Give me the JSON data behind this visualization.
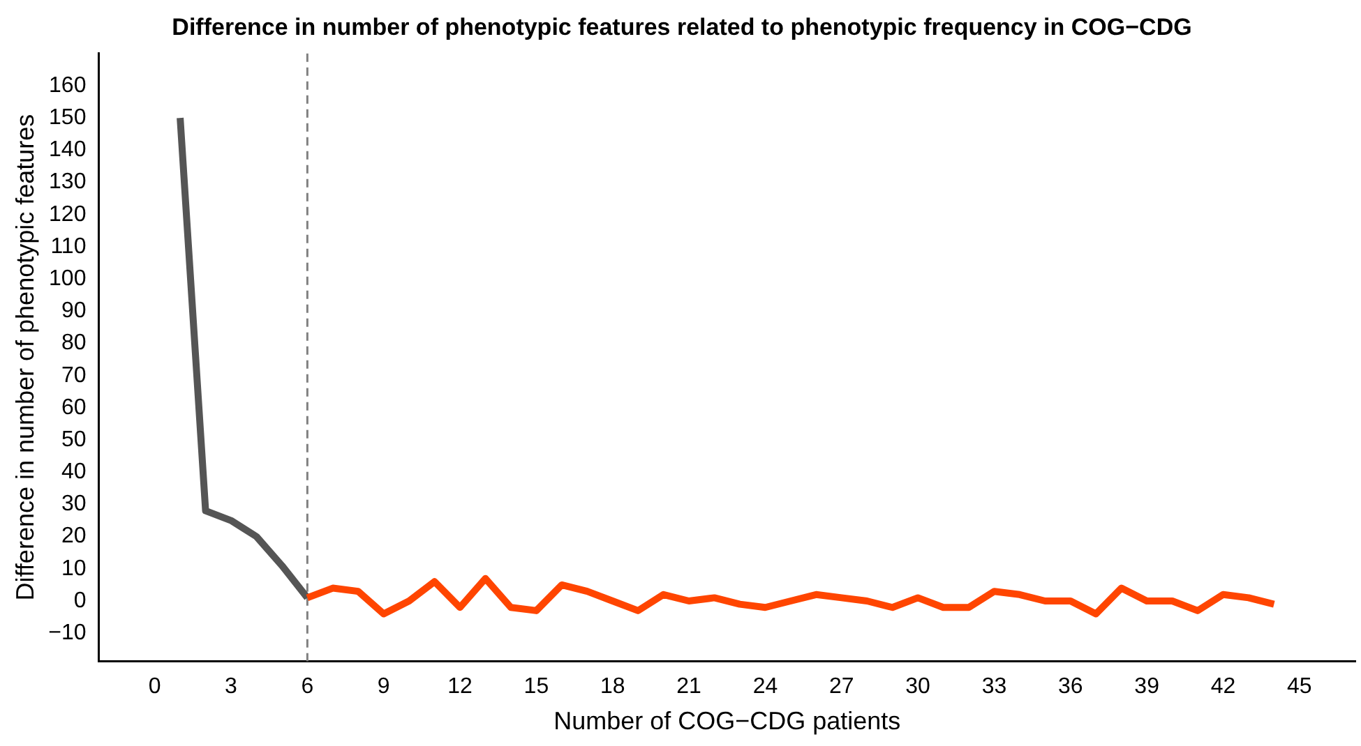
{
  "chart_data": {
    "type": "line",
    "title": "Difference in number of phenotypic features related to phenotypic frequency in COG−CDG",
    "xlabel": "Number of COG−CDG patients",
    "ylabel": "Difference in number of phenotypic features",
    "series": [
      {
        "color": "#ff4500",
        "x": [
          6,
          7,
          8,
          9,
          10,
          11,
          12,
          13,
          14,
          15,
          16,
          17,
          18,
          19,
          20,
          21,
          22,
          23,
          24,
          25,
          26,
          27,
          28,
          29,
          30,
          31,
          32,
          33,
          34,
          35,
          36,
          37,
          38,
          39,
          40,
          41,
          42,
          43,
          44
        ],
        "values": [
          1,
          4,
          3,
          -4,
          0,
          6,
          -2,
          7,
          -2,
          -3,
          5,
          3,
          0,
          -3,
          2,
          0,
          1,
          -1,
          -2,
          0,
          2,
          1,
          0,
          -2,
          1,
          -2,
          -2,
          3,
          2,
          0,
          0,
          -4,
          4,
          0,
          0,
          -3,
          2,
          1,
          -1
        ]
      },
      {
        "color": "#555555",
        "x": [
          1,
          2,
          3,
          4,
          5,
          6
        ],
        "values": [
          150,
          28,
          25,
          20,
          11,
          1
        ]
      }
    ],
    "xlim": [
      -2.2,
      47.2
    ],
    "ylim": [
      -18.7,
      170
    ],
    "xticks": [
      0,
      3,
      6,
      9,
      12,
      15,
      18,
      21,
      24,
      27,
      30,
      33,
      36,
      39,
      42,
      45
    ],
    "yticks": [
      -10,
      0,
      10,
      20,
      30,
      40,
      50,
      60,
      70,
      80,
      90,
      100,
      110,
      120,
      130,
      140,
      150,
      160
    ],
    "ref_lines": [
      {
        "axis": "x",
        "value": 6,
        "color": "#808080",
        "line_style": "dashed"
      }
    ],
    "grid": false,
    "legend": false,
    "marker": "none",
    "line_style": "solid"
  }
}
